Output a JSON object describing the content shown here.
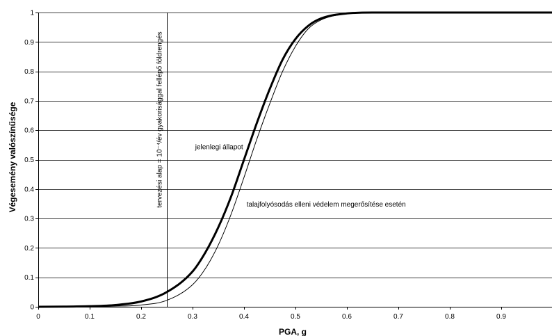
{
  "chart_data": {
    "type": "line",
    "xlabel": "PGA, g",
    "ylabel": "Végesemény valószínűsége",
    "xlim": [
      0,
      1
    ],
    "ylim": [
      0,
      1
    ],
    "x_ticks": [
      "0",
      "0.1",
      "0.2",
      "0.3",
      "0.4",
      "0.5",
      "0.6",
      "0.7",
      "0.8",
      "0.9"
    ],
    "y_ticks": [
      "0",
      "0.1",
      "0.2",
      "0.3",
      "0.4",
      "0.5",
      "0.6",
      "0.7",
      "0.8",
      "0.9",
      "1"
    ],
    "grid": "horizontal",
    "series": [
      {
        "name": "jelenlegi állapot",
        "color": "#000000",
        "style": "thick",
        "x": [
          0,
          0.05,
          0.1,
          0.15,
          0.2,
          0.25,
          0.3,
          0.325,
          0.35,
          0.375,
          0.4,
          0.425,
          0.45,
          0.475,
          0.5,
          0.525,
          0.55,
          0.6,
          0.65,
          0.7,
          0.8,
          0.9,
          1.0
        ],
        "y": [
          0,
          0.0005,
          0.002,
          0.006,
          0.018,
          0.05,
          0.12,
          0.185,
          0.27,
          0.375,
          0.5,
          0.625,
          0.74,
          0.84,
          0.91,
          0.955,
          0.98,
          0.997,
          1.0,
          1.0,
          1.0,
          1.0,
          1.0
        ]
      },
      {
        "name": "talajfolyósodás elleni védelem megerősítése esetén",
        "color": "#000000",
        "style": "thin",
        "x": [
          0,
          0.1,
          0.15,
          0.2,
          0.25,
          0.3,
          0.325,
          0.35,
          0.375,
          0.4,
          0.425,
          0.45,
          0.475,
          0.5,
          0.525,
          0.55,
          0.6,
          0.65,
          0.7,
          0.8,
          0.9,
          1.0
        ],
        "y": [
          0,
          0.0005,
          0.002,
          0.006,
          0.022,
          0.075,
          0.13,
          0.21,
          0.315,
          0.44,
          0.57,
          0.69,
          0.8,
          0.885,
          0.945,
          0.975,
          0.996,
          1.0,
          1.0,
          1.0,
          1.0,
          1.0
        ]
      }
    ],
    "reference_line": {
      "x": 0.25,
      "label": "tervezési alap = 10⁻⁴/év gyakorisággal fellépő földrengés"
    },
    "annotations": [
      {
        "text": "jelenlegi állapot",
        "x": 0.305,
        "y": 0.535
      },
      {
        "text": "talajfolyósodás elleni védelem megerősítése esetén",
        "x": 0.405,
        "y": 0.34
      }
    ]
  }
}
